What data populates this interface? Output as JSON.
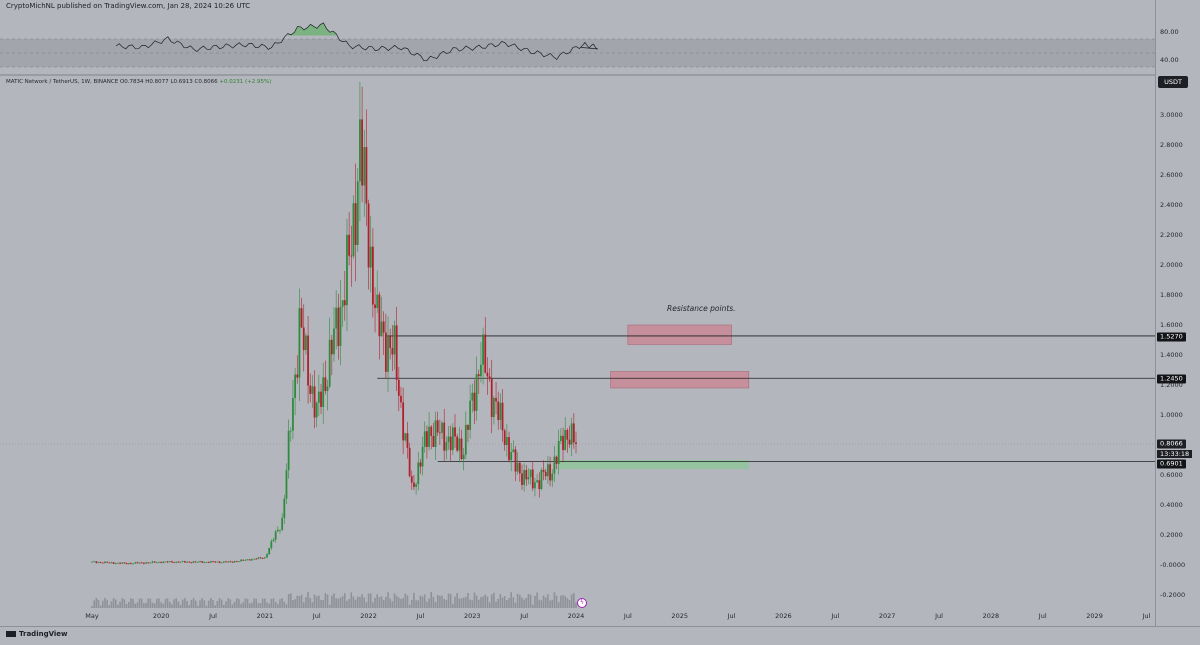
{
  "header": {
    "published_text": "CryptoMichNL published on TradingView.com, Jan 28, 2024 10:26 UTC"
  },
  "legend": {
    "symbol": "MATIC Network / TetherUS, 1W, BINANCE",
    "open": "O0.7834",
    "high": "H0.8077",
    "low": "L0.6913",
    "close": "C0.8066",
    "change": "+0.0231 (+2.95%)"
  },
  "currency_label": "USDT",
  "annotation": "Resistance points.",
  "footer": {
    "logo_text": "TradingView"
  },
  "price_tags": {
    "current": "0.8066",
    "countdown": "13:33:18",
    "resistance_1": "1.5270",
    "resistance_2": "1.2450",
    "support": "0.6901"
  },
  "colors": {
    "background": "#b4b6bd",
    "up_candle": "#2e8b3e",
    "down_candle": "#b0202b",
    "resistance_zone": "#c98a96",
    "support_zone": "#8fc49a",
    "rsi_line": "#1e1f24",
    "rsi_overbought": "#4caf50"
  },
  "chart_data": [
    {
      "type": "line",
      "title": "",
      "yaxis_ticks": [
        "80.00",
        "40.00"
      ],
      "series": [
        {
          "x": [
            "2019-05",
            "2019-08",
            "2019-11",
            "2020-02",
            "2020-05",
            "2020-08",
            "2020-11",
            "2021-02",
            "2021-05",
            "2021-08",
            "2021-11",
            "2022-02",
            "2022-05",
            "2022-08",
            "2022-11",
            "2023-02",
            "2023-05",
            "2023-08",
            "2023-11",
            "2024-01"
          ],
          "values": [
            60,
            58,
            70,
            55,
            59,
            62,
            58,
            85,
            90,
            60,
            56,
            58,
            40,
            55,
            58,
            64,
            52,
            44,
            62,
            58
          ]
        }
      ],
      "ylim": [
        30,
        95
      ]
    },
    {
      "type": "bar",
      "subtype": "candlestick",
      "x_ticks": [
        "May",
        "2020",
        "Jul",
        "2021",
        "Jul",
        "2022",
        "Jul",
        "2023",
        "Jul",
        "2024",
        "Jul",
        "2025",
        "Jul",
        "2026",
        "Jul",
        "2027",
        "Jul",
        "2028",
        "Jul",
        "2029",
        "Jul"
      ],
      "y_ticks": [
        "3.0000",
        "2.8000",
        "2.6000",
        "2.4000",
        "2.2000",
        "2.0000",
        "1.8000",
        "1.6000",
        "1.4000",
        "1.2000",
        "1.0000",
        "0.6000",
        "0.4000",
        "0.2000",
        "-0.0000",
        "-0.2000"
      ],
      "ylim": [
        -0.25,
        3.15
      ],
      "series": [
        {
          "name": "MATIC/USDT",
          "x": [
            "2019-05",
            "2019-09",
            "2020-01",
            "2020-05",
            "2020-09",
            "2021-01",
            "2021-03",
            "2021-05",
            "2021-07",
            "2021-09",
            "2021-11",
            "2021-12",
            "2022-02",
            "2022-04",
            "2022-06",
            "2022-08",
            "2022-10",
            "2022-12",
            "2023-02",
            "2023-04",
            "2023-06",
            "2023-08",
            "2023-10",
            "2023-12",
            "2024-01"
          ],
          "values": [
            0.02,
            0.01,
            0.02,
            0.02,
            0.02,
            0.05,
            0.3,
            1.6,
            1.0,
            1.5,
            2.1,
            2.8,
            1.6,
            1.4,
            0.5,
            0.9,
            0.85,
            0.78,
            1.4,
            1.0,
            0.65,
            0.55,
            0.62,
            0.9,
            0.8066
          ]
        }
      ],
      "levels": [
        {
          "label": "1.5270",
          "value": 1.527
        },
        {
          "label": "1.2450",
          "value": 1.245
        },
        {
          "label": "0.6901",
          "value": 0.6901
        }
      ],
      "zones": [
        {
          "kind": "resistance",
          "from": "2024-07",
          "to": "2025-07",
          "low": 1.47,
          "high": 1.6
        },
        {
          "kind": "resistance",
          "from": "2024-05",
          "to": "2025-09",
          "low": 1.18,
          "high": 1.29
        },
        {
          "kind": "support",
          "from": "2023-11",
          "to": "2025-09",
          "low": 0.64,
          "high": 0.7
        }
      ]
    }
  ]
}
